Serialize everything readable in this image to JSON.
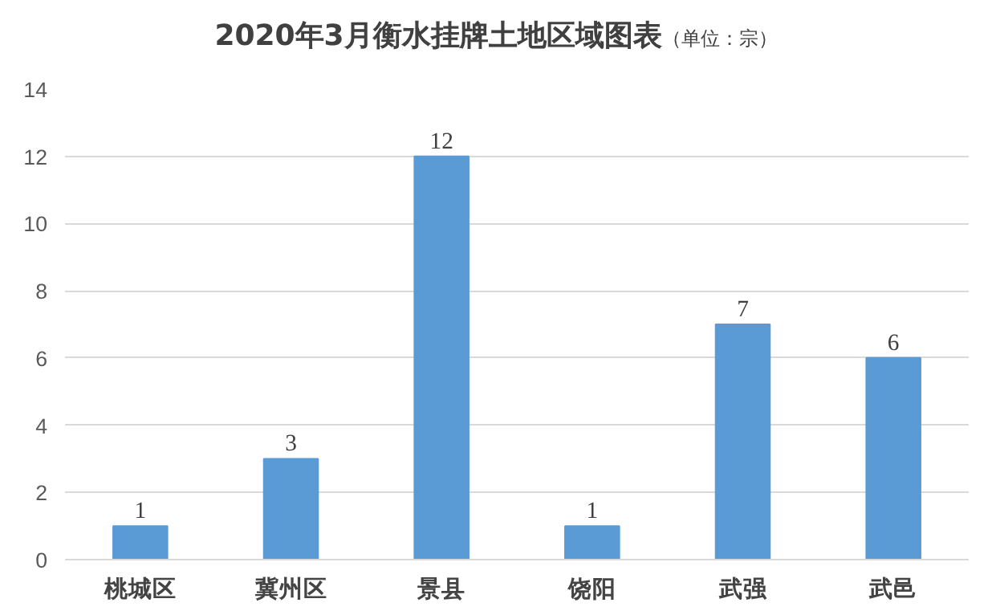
{
  "chart_data": {
    "type": "bar",
    "title": "2020年3月衡水挂牌土地区域图表",
    "subtitle": "（单位：宗）",
    "categories": [
      "桃城区",
      "冀州区",
      "景县",
      "饶阳",
      "武强",
      "武邑"
    ],
    "values": [
      1,
      3,
      12,
      1,
      7,
      6
    ],
    "color": "#5b9bd5",
    "ylim": [
      0,
      14
    ],
    "yticks": [
      0,
      2,
      4,
      6,
      8,
      10,
      12,
      14
    ],
    "grid": "y",
    "data_labels": true
  }
}
